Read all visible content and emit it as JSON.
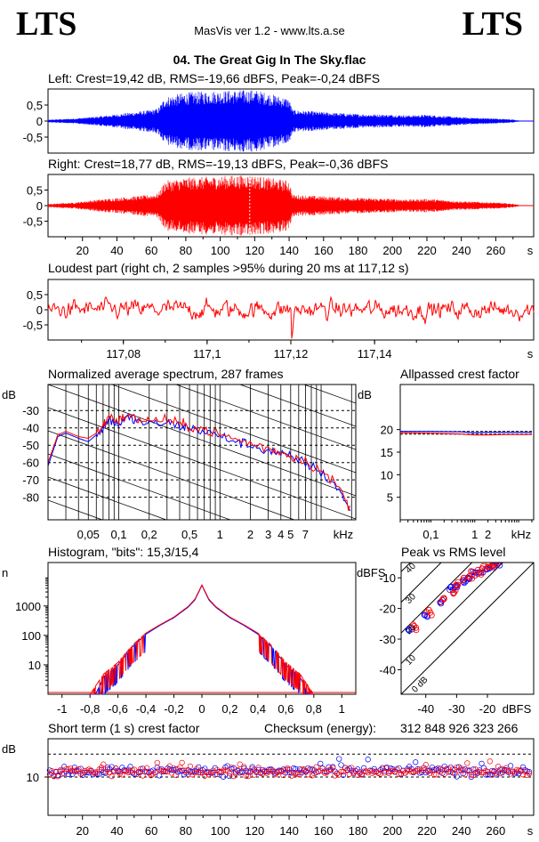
{
  "header": {
    "logo_left": "LTS",
    "logo_right": "LTS",
    "app_title": "MasVis ver 1.2 - www.lts.a.se",
    "track_title": "04. The Great Gig In The Sky.flac"
  },
  "colors": {
    "left": "#0000ff",
    "right": "#ff0000",
    "grid": "#000000"
  },
  "chart_data": [
    {
      "type": "area",
      "id": "left",
      "title": "Left: Crest=19,42 dB, RMS=-19,66 dBFS, Peak=-0,24 dBFS",
      "yticks": [
        "0,5",
        "0",
        "-0,5"
      ],
      "ylim": [
        -1,
        1
      ],
      "xlim": [
        0,
        282
      ],
      "series": [
        {
          "name": "Left",
          "envelope": [
            [
              0,
              0.04
            ],
            [
              15,
              0.08
            ],
            [
              30,
              0.15
            ],
            [
              50,
              0.28
            ],
            [
              60,
              0.35
            ],
            [
              64,
              0.4
            ],
            [
              68,
              0.75
            ],
            [
              80,
              0.9
            ],
            [
              100,
              0.95
            ],
            [
              120,
              0.98
            ],
            [
              140,
              0.7
            ],
            [
              142,
              0.35
            ],
            [
              160,
              0.28
            ],
            [
              180,
              0.22
            ],
            [
              200,
              0.2
            ],
            [
              210,
              0.18
            ],
            [
              220,
              0.2
            ],
            [
              240,
              0.12
            ],
            [
              260,
              0.08
            ],
            [
              270,
              0.05
            ],
            [
              275,
              0
            ]
          ]
        }
      ]
    },
    {
      "type": "area",
      "id": "right",
      "title": "Right: Crest=18,77 dB, RMS=-19,13 dBFS, Peak=-0,36 dBFS",
      "yticks": [
        "0,5",
        "0",
        "-0,5"
      ],
      "ylim": [
        -1,
        1
      ],
      "xlim": [
        0,
        282
      ],
      "xticks": [
        "20",
        "40",
        "60",
        "80",
        "100",
        "120",
        "140",
        "160",
        "180",
        "200",
        "220",
        "240",
        "260",
        "s"
      ],
      "series": [
        {
          "name": "Right",
          "envelope": [
            [
              0,
              0.05
            ],
            [
              15,
              0.1
            ],
            [
              30,
              0.2
            ],
            [
              50,
              0.3
            ],
            [
              60,
              0.35
            ],
            [
              64,
              0.4
            ],
            [
              68,
              0.8
            ],
            [
              80,
              0.9
            ],
            [
              100,
              0.95
            ],
            [
              117,
              0.99
            ],
            [
              140,
              0.8
            ],
            [
              142,
              0.35
            ],
            [
              160,
              0.3
            ],
            [
              180,
              0.25
            ],
            [
              200,
              0.22
            ],
            [
              210,
              0.2
            ],
            [
              220,
              0.22
            ],
            [
              240,
              0.14
            ],
            [
              260,
              0.1
            ],
            [
              270,
              0.06
            ],
            [
              275,
              0
            ]
          ]
        }
      ]
    },
    {
      "type": "line",
      "id": "loudest",
      "title": "Loudest part (right ch, 2 samples >95% during 20 ms at 117,12 s)",
      "yticks": [
        "0,5",
        "0",
        "-0,5"
      ],
      "xticks": [
        "117,08",
        "117,1",
        "117,12",
        "117,14",
        "s"
      ],
      "xtick_values": [
        117.08,
        117.1,
        117.12,
        117.14
      ],
      "xlim": [
        117.062,
        117.178
      ],
      "ylim": [
        -1,
        1
      ]
    },
    {
      "type": "line",
      "id": "spectrum",
      "title": "Normalized average spectrum, 287 frames",
      "ylabel": "dB",
      "xlabel": "kHz",
      "yticks": [
        "-30",
        "-40",
        "-50",
        "-60",
        "-70",
        "-80"
      ],
      "ytick_values": [
        -30,
        -40,
        -50,
        -60,
        -70,
        -80
      ],
      "xticks": [
        "0,05",
        "0,1",
        "0,2",
        "0,5",
        "1",
        "2",
        "3",
        "4",
        "5",
        "7",
        "kHz"
      ],
      "xtick_values": [
        0.05,
        0.1,
        0.2,
        0.5,
        1,
        2,
        3,
        4,
        5,
        7
      ],
      "xlim": [
        0.02,
        22
      ],
      "ylim": [
        -93,
        -15
      ],
      "series": [
        {
          "name": "Left",
          "points": [
            [
              0.02,
              -62
            ],
            [
              0.025,
              -45
            ],
            [
              0.03,
              -43
            ],
            [
              0.04,
              -46
            ],
            [
              0.05,
              -48
            ],
            [
              0.06,
              -44
            ],
            [
              0.07,
              -40
            ],
            [
              0.08,
              -35
            ],
            [
              0.1,
              -38
            ],
            [
              0.12,
              -34
            ],
            [
              0.15,
              -36
            ],
            [
              0.2,
              -38
            ],
            [
              0.3,
              -37
            ],
            [
              0.4,
              -39
            ],
            [
              0.5,
              -40
            ],
            [
              0.7,
              -42
            ],
            [
              1,
              -45
            ],
            [
              1.5,
              -48
            ],
            [
              2,
              -50
            ],
            [
              3,
              -53
            ],
            [
              4,
              -55
            ],
            [
              5,
              -57
            ],
            [
              7,
              -60
            ],
            [
              10,
              -66
            ],
            [
              15,
              -75
            ],
            [
              20,
              -90
            ]
          ]
        },
        {
          "name": "Right",
          "points": [
            [
              0.02,
              -60
            ],
            [
              0.025,
              -44
            ],
            [
              0.03,
              -42
            ],
            [
              0.04,
              -45
            ],
            [
              0.05,
              -46
            ],
            [
              0.06,
              -43
            ],
            [
              0.07,
              -39
            ],
            [
              0.08,
              -33
            ],
            [
              0.1,
              -36
            ],
            [
              0.12,
              -33
            ],
            [
              0.15,
              -35
            ],
            [
              0.2,
              -36
            ],
            [
              0.3,
              -35
            ],
            [
              0.4,
              -38
            ],
            [
              0.5,
              -39
            ],
            [
              0.7,
              -41
            ],
            [
              1,
              -44
            ],
            [
              1.5,
              -47
            ],
            [
              2,
              -49
            ],
            [
              3,
              -52
            ],
            [
              4,
              -54
            ],
            [
              5,
              -56
            ],
            [
              7,
              -59
            ],
            [
              10,
              -65
            ],
            [
              15,
              -74
            ],
            [
              20,
              -89
            ]
          ]
        }
      ]
    },
    {
      "type": "line",
      "id": "allpass",
      "title": "Allpassed crest factor",
      "ylabel": "dB",
      "yticks": [
        "20",
        "15",
        "10",
        "5"
      ],
      "ytick_values": [
        20,
        15,
        10,
        5
      ],
      "xticks": [
        "0,1",
        "1",
        "2",
        "kHz"
      ],
      "xtick_values": [
        0.1,
        1,
        2
      ],
      "xlim": [
        0.02,
        22
      ],
      "ylim": [
        0,
        30
      ],
      "series": [
        {
          "name": "Left",
          "points": [
            [
              0.02,
              19.6
            ],
            [
              0.1,
              19.6
            ],
            [
              0.5,
              19.5
            ],
            [
              1,
              19.3
            ],
            [
              2,
              19.4
            ],
            [
              5,
              19.4
            ],
            [
              10,
              19.4
            ],
            [
              20,
              19.4
            ]
          ]
        },
        {
          "name": "Right",
          "points": [
            [
              0.02,
              19.3
            ],
            [
              0.1,
              19.2
            ],
            [
              0.5,
              19.0
            ],
            [
              1,
              18.8
            ],
            [
              2,
              18.8
            ],
            [
              5,
              18.9
            ],
            [
              10,
              18.9
            ],
            [
              20,
              18.9
            ]
          ]
        }
      ]
    },
    {
      "type": "line",
      "id": "histogram",
      "title": "Histogram, \"bits\": 15,3/15,4",
      "ylabel": "n",
      "yticks": [
        "1000",
        "100",
        "10"
      ],
      "ytick_values": [
        1000,
        100,
        10
      ],
      "xticks": [
        "-1",
        "-0,8",
        "-0,6",
        "-0,4",
        "-0,2",
        "0",
        "0,2",
        "0,4",
        "0,6",
        "0,8",
        "1"
      ],
      "xtick_values": [
        -1,
        -0.8,
        -0.6,
        -0.4,
        -0.2,
        0,
        0.2,
        0.4,
        0.6,
        0.8,
        1
      ],
      "xlim": [
        -1.1,
        1.1
      ],
      "ylim": [
        1,
        30000
      ],
      "series": [
        {
          "name": "Left",
          "points": [
            [
              -0.76,
              1
            ],
            [
              -0.7,
              4
            ],
            [
              -0.6,
              10
            ],
            [
              -0.5,
              40
            ],
            [
              -0.4,
              110
            ],
            [
              -0.3,
              220
            ],
            [
              -0.2,
              400
            ],
            [
              -0.1,
              900
            ],
            [
              -0.05,
              1600
            ],
            [
              0,
              5000
            ],
            [
              0.05,
              1600
            ],
            [
              0.1,
              900
            ],
            [
              0.2,
              400
            ],
            [
              0.3,
              220
            ],
            [
              0.4,
              110
            ],
            [
              0.5,
              40
            ],
            [
              0.6,
              10
            ],
            [
              0.7,
              4
            ],
            [
              0.76,
              1
            ]
          ]
        },
        {
          "name": "Right",
          "points": [
            [
              -0.8,
              1
            ],
            [
              -0.7,
              5
            ],
            [
              -0.6,
              12
            ],
            [
              -0.5,
              45
            ],
            [
              -0.4,
              120
            ],
            [
              -0.3,
              230
            ],
            [
              -0.2,
              420
            ],
            [
              -0.1,
              950
            ],
            [
              -0.05,
              1700
            ],
            [
              0,
              5200
            ],
            [
              0.05,
              1700
            ],
            [
              0.1,
              950
            ],
            [
              0.2,
              420
            ],
            [
              0.3,
              230
            ],
            [
              0.4,
              120
            ],
            [
              0.5,
              45
            ],
            [
              0.6,
              12
            ],
            [
              0.7,
              5
            ],
            [
              0.8,
              1
            ]
          ]
        }
      ]
    },
    {
      "type": "scatter",
      "id": "peak_rms",
      "title": "Peak vs RMS level",
      "ylabel": "dBFS",
      "xlabel": "dBFS",
      "yticks": [
        "-10",
        "-20",
        "-30",
        "-40"
      ],
      "ytick_values": [
        -10,
        -20,
        -30,
        -40
      ],
      "xticks": [
        "-40",
        "-30",
        "-20",
        "dBFS"
      ],
      "xtick_values": [
        -40,
        -30,
        -20
      ],
      "xlim": [
        -48,
        -5
      ],
      "ylim": [
        -48,
        -5
      ],
      "diagonal_labels": [
        "40",
        "30",
        "20",
        "10",
        "0 dB"
      ],
      "series": [
        {
          "name": "Left",
          "points": [
            [
              -45,
              -27
            ],
            [
              -40,
              -22
            ],
            [
              -35,
              -18
            ],
            [
              -32,
              -14
            ],
            [
              -30,
              -13
            ],
            [
              -28,
              -11
            ],
            [
              -26,
              -10
            ],
            [
              -24,
              -8
            ],
            [
              -22,
              -8
            ],
            [
              -20,
              -7
            ],
            [
              -18,
              -6
            ],
            [
              -17,
              -5
            ]
          ]
        },
        {
          "name": "Right",
          "points": [
            [
              -44,
              -26
            ],
            [
              -39,
              -21
            ],
            [
              -34,
              -17
            ],
            [
              -31,
              -14
            ],
            [
              -29,
              -12
            ],
            [
              -27,
              -10
            ],
            [
              -25,
              -9
            ],
            [
              -23,
              -8
            ],
            [
              -21,
              -7
            ],
            [
              -19,
              -6
            ],
            [
              -17,
              -5
            ]
          ]
        }
      ]
    },
    {
      "type": "scatter",
      "id": "short_term_crest",
      "title": "Short term (1 s) crest factor",
      "ylabel": "dB",
      "yticks": [
        "10"
      ],
      "ytick_values": [
        10
      ],
      "xticks": [
        "20",
        "40",
        "60",
        "80",
        "100",
        "120",
        "140",
        "160",
        "180",
        "200",
        "220",
        "240",
        "260",
        "s"
      ],
      "xlim": [
        0,
        282
      ],
      "ylim": [
        0,
        20
      ],
      "checksum_label": "Checksum (energy):",
      "checksum_value": "312 848 926 323 266",
      "series": [
        {
          "name": "Left",
          "mean": 11.6
        },
        {
          "name": "Right",
          "mean": 11.4
        }
      ]
    }
  ]
}
